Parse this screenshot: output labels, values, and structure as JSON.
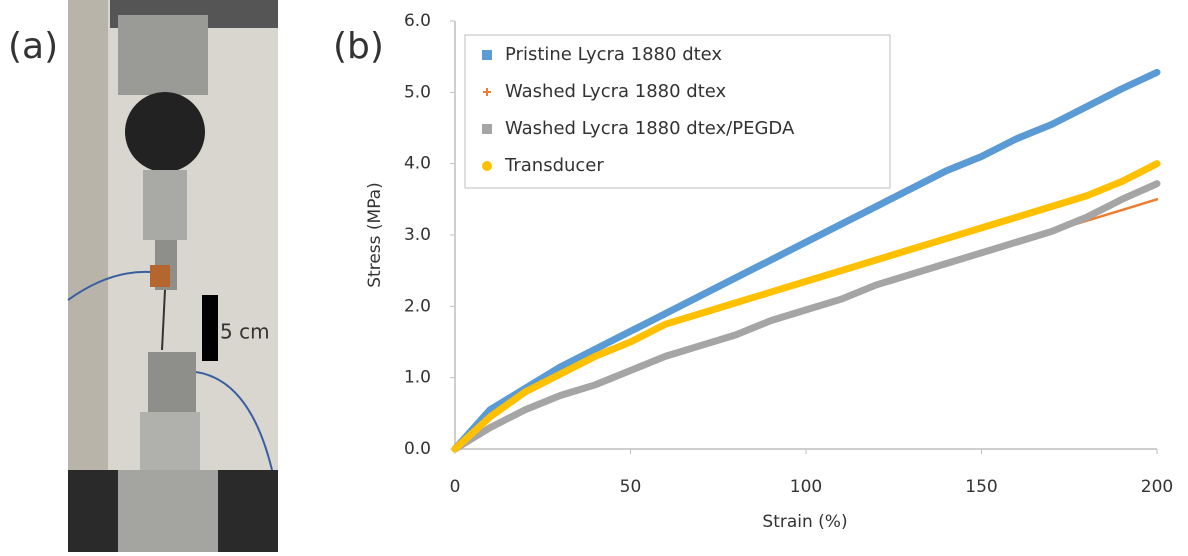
{
  "panel_a": {
    "label": "(a)",
    "scale_bar": "5 cm"
  },
  "chart_data": {
    "type": "line",
    "panel_label": "(b)",
    "x_label": "Strain (%)",
    "y_label": "Stress (MPa)",
    "x": [
      0,
      10,
      20,
      30,
      40,
      50,
      60,
      70,
      80,
      90,
      100,
      110,
      120,
      130,
      140,
      150,
      160,
      170,
      180,
      190,
      200
    ],
    "series": [
      {
        "name": "Pristine Lycra 1880 dtex",
        "color": "#5b9bd5",
        "marker": "square",
        "values": [
          0,
          0.55,
          0.85,
          1.15,
          1.4,
          1.65,
          1.9,
          2.15,
          2.4,
          2.65,
          2.9,
          3.15,
          3.4,
          3.65,
          3.9,
          4.1,
          4.35,
          4.55,
          4.8,
          5.05,
          5.28
        ]
      },
      {
        "name": "Washed Lycra 1880 dtex",
        "color": "#ed7d31",
        "marker": "plus",
        "values": [
          0,
          0.3,
          0.55,
          0.75,
          0.9,
          1.1,
          1.3,
          1.45,
          1.6,
          1.8,
          1.95,
          2.1,
          2.3,
          2.45,
          2.6,
          2.75,
          2.9,
          3.05,
          3.2,
          3.35,
          3.5
        ]
      },
      {
        "name": "Washed Lycra 1880 dtex/PEGDA",
        "color": "#a5a5a5",
        "marker": "square",
        "values": [
          0,
          0.3,
          0.55,
          0.75,
          0.9,
          1.1,
          1.3,
          1.45,
          1.6,
          1.8,
          1.95,
          2.1,
          2.3,
          2.45,
          2.6,
          2.75,
          2.9,
          3.05,
          3.25,
          3.5,
          3.72
        ]
      },
      {
        "name": "Transducer",
        "color": "#ffc000",
        "marker": "circle",
        "values": [
          0,
          0.45,
          0.8,
          1.05,
          1.3,
          1.5,
          1.75,
          1.9,
          2.05,
          2.2,
          2.35,
          2.5,
          2.65,
          2.8,
          2.95,
          3.1,
          3.25,
          3.4,
          3.55,
          3.75,
          4.0
        ]
      }
    ],
    "xlim": [
      0,
      200
    ],
    "xticks": [
      0,
      50,
      100,
      150,
      200
    ],
    "ylim": [
      0,
      6
    ],
    "yticks": [
      {
        "value": 0,
        "label": "0.0"
      },
      {
        "value": 1,
        "label": "1.0"
      },
      {
        "value": 2,
        "label": "2.0"
      },
      {
        "value": 3,
        "label": "3.0"
      },
      {
        "value": 4,
        "label": "4.0"
      },
      {
        "value": 5,
        "label": "5.0"
      },
      {
        "value": 6,
        "label": "6.0"
      }
    ],
    "grid": false,
    "legend": "top-left"
  }
}
